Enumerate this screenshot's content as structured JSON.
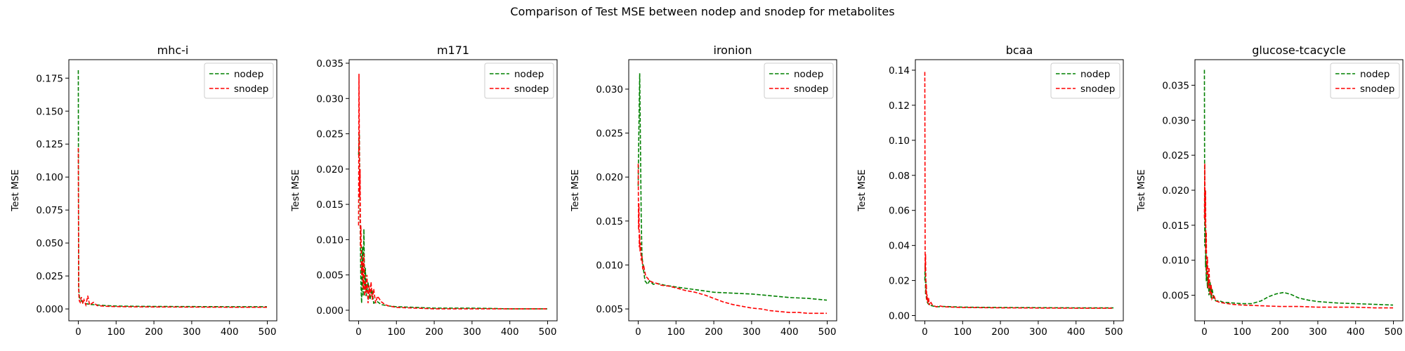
{
  "figure": {
    "suptitle": "Comparison of Test MSE between nodep and snodep for metabolites"
  },
  "colors": {
    "nodep": "#008000",
    "snodep": "#ff0000"
  },
  "chart_data": [
    {
      "type": "line",
      "title": "mhc-i",
      "xlabel": "",
      "ylabel": "Test MSE",
      "xlim": [
        -25,
        525
      ],
      "ylim": [
        -0.009,
        0.189
      ],
      "xticks": [
        0,
        100,
        200,
        300,
        400,
        500
      ],
      "yticks": [
        0.0,
        0.025,
        0.05,
        0.075,
        0.1,
        0.125,
        0.15,
        0.175
      ],
      "ytick_labels": [
        "0.000",
        "0.025",
        "0.050",
        "0.075",
        "0.100",
        "0.125",
        "0.150",
        "0.175"
      ],
      "grid": false,
      "legend": "top-right",
      "series": [
        {
          "name": "nodep",
          "x": [
            0,
            1,
            2,
            3,
            5,
            8,
            12,
            20,
            30,
            50,
            75,
            100,
            150,
            200,
            300,
            400,
            499
          ],
          "y": [
            0.181,
            0.018,
            0.012,
            0.009,
            0.007,
            0.006,
            0.005,
            0.004,
            0.0035,
            0.003,
            0.0025,
            0.0022,
            0.002,
            0.0019,
            0.0018,
            0.0017,
            0.0017
          ]
        },
        {
          "name": "snodep",
          "x": [
            0,
            1,
            2,
            3,
            5,
            8,
            12,
            15,
            20,
            25,
            30,
            40,
            50,
            75,
            100,
            150,
            200,
            300,
            400,
            499
          ],
          "y": [
            0.122,
            0.015,
            0.008,
            0.006,
            0.005,
            0.009,
            0.004,
            0.007,
            0.003,
            0.01,
            0.003,
            0.005,
            0.0025,
            0.002,
            0.0018,
            0.0016,
            0.0015,
            0.0014,
            0.0013,
            0.0013
          ]
        }
      ]
    },
    {
      "type": "line",
      "title": "m171",
      "xlabel": "",
      "ylabel": "Test MSE",
      "xlim": [
        -25,
        525
      ],
      "ylim": [
        -0.0015,
        0.0355
      ],
      "xticks": [
        0,
        100,
        200,
        300,
        400,
        500
      ],
      "yticks": [
        0.0,
        0.005,
        0.01,
        0.015,
        0.02,
        0.025,
        0.03,
        0.035
      ],
      "ytick_labels": [
        "0.000",
        "0.005",
        "0.010",
        "0.015",
        "0.020",
        "0.025",
        "0.030",
        "0.035"
      ],
      "grid": false,
      "legend": "top-right",
      "series": [
        {
          "name": "nodep",
          "x": [
            0,
            2,
            4,
            6,
            8,
            10,
            12,
            14,
            16,
            18,
            20,
            25,
            30,
            35,
            40,
            50,
            60,
            80,
            100,
            150,
            200,
            300,
            400,
            499
          ],
          "y": [
            0.022,
            0.025,
            0.013,
            0.004,
            0.001,
            0.009,
            0.002,
            0.0115,
            0.003,
            0.006,
            0.002,
            0.004,
            0.0015,
            0.003,
            0.001,
            0.0012,
            0.0008,
            0.0006,
            0.0005,
            0.0004,
            0.0003,
            0.0003,
            0.0002,
            0.0002
          ]
        },
        {
          "name": "snodep",
          "x": [
            0,
            1,
            2,
            3,
            4,
            5,
            6,
            8,
            10,
            12,
            14,
            16,
            18,
            20,
            22,
            25,
            28,
            30,
            33,
            36,
            40,
            45,
            50,
            60,
            70,
            80,
            100,
            150,
            200,
            300,
            400,
            499
          ],
          "y": [
            0.012,
            0.0335,
            0.024,
            0.016,
            0.02,
            0.009,
            0.012,
            0.005,
            0.007,
            0.003,
            0.008,
            0.002,
            0.004,
            0.0025,
            0.005,
            0.001,
            0.0035,
            0.002,
            0.004,
            0.0015,
            0.003,
            0.001,
            0.002,
            0.0012,
            0.0008,
            0.0006,
            0.0004,
            0.0003,
            0.0002,
            0.0002,
            0.0002,
            0.0002
          ]
        }
      ]
    },
    {
      "type": "line",
      "title": "ironion",
      "xlabel": "",
      "ylabel": "Test MSE",
      "xlim": [
        -25,
        525
      ],
      "ylim": [
        0.00365,
        0.03335
      ],
      "xticks": [
        0,
        100,
        200,
        300,
        400,
        500
      ],
      "yticks": [
        0.005,
        0.01,
        0.015,
        0.02,
        0.025,
        0.03
      ],
      "ytick_labels": [
        "0.005",
        "0.010",
        "0.015",
        "0.020",
        "0.025",
        "0.030"
      ],
      "grid": false,
      "legend": "top-right",
      "series": [
        {
          "name": "nodep",
          "x": [
            0,
            2,
            4,
            6,
            8,
            10,
            14,
            18,
            25,
            30,
            40,
            50,
            70,
            100,
            150,
            200,
            250,
            300,
            350,
            400,
            450,
            499
          ],
          "y": [
            0.019,
            0.026,
            0.0318,
            0.0235,
            0.0155,
            0.011,
            0.0095,
            0.0082,
            0.0078,
            0.0082,
            0.0078,
            0.0079,
            0.0077,
            0.0075,
            0.0072,
            0.0069,
            0.0068,
            0.0067,
            0.0065,
            0.0063,
            0.0062,
            0.006
          ]
        },
        {
          "name": "snodep",
          "x": [
            0,
            1,
            2,
            3,
            4,
            5,
            6,
            8,
            10,
            12,
            15,
            20,
            25,
            30,
            40,
            50,
            60,
            80,
            100,
            125,
            150,
            175,
            200,
            225,
            250,
            275,
            300,
            325,
            350,
            375,
            400,
            425,
            450,
            475,
            499
          ],
          "y": [
            0.0215,
            0.014,
            0.017,
            0.012,
            0.0135,
            0.0115,
            0.0125,
            0.0105,
            0.011,
            0.0095,
            0.0098,
            0.0087,
            0.0085,
            0.0082,
            0.008,
            0.0079,
            0.0077,
            0.0076,
            0.0074,
            0.0071,
            0.0069,
            0.0066,
            0.0062,
            0.0058,
            0.0055,
            0.0053,
            0.0051,
            0.005,
            0.0048,
            0.0047,
            0.0046,
            0.0046,
            0.0045,
            0.0045,
            0.0045
          ]
        }
      ]
    },
    {
      "type": "line",
      "title": "bcaa",
      "xlabel": "",
      "ylabel": "Test MSE",
      "xlim": [
        -25,
        525
      ],
      "ylim": [
        -0.003,
        0.146
      ],
      "xticks": [
        0,
        100,
        200,
        300,
        400,
        500
      ],
      "yticks": [
        0.0,
        0.02,
        0.04,
        0.06,
        0.08,
        0.1,
        0.12,
        0.14
      ],
      "ytick_labels": [
        "0.00",
        "0.02",
        "0.04",
        "0.06",
        "0.08",
        "0.10",
        "0.12",
        "0.14"
      ],
      "grid": false,
      "legend": "top-right",
      "series": [
        {
          "name": "nodep",
          "x": [
            0,
            1,
            2,
            3,
            4,
            6,
            8,
            12,
            20,
            30,
            50,
            75,
            100,
            150,
            200,
            300,
            400,
            499
          ],
          "y": [
            0.02,
            0.03,
            0.012,
            0.02,
            0.01,
            0.008,
            0.007,
            0.006,
            0.0055,
            0.005,
            0.0052,
            0.005,
            0.0048,
            0.0047,
            0.0046,
            0.0045,
            0.0044,
            0.0044
          ]
        },
        {
          "name": "snodep",
          "x": [
            0,
            1,
            2,
            3,
            4,
            5,
            6,
            8,
            10,
            12,
            15,
            20,
            30,
            40,
            50,
            75,
            100,
            150,
            200,
            300,
            400,
            499
          ],
          "y": [
            0.139,
            0.025,
            0.035,
            0.012,
            0.018,
            0.009,
            0.012,
            0.007,
            0.01,
            0.006,
            0.008,
            0.006,
            0.005,
            0.0055,
            0.005,
            0.0048,
            0.0046,
            0.0045,
            0.0044,
            0.0043,
            0.0042,
            0.0042
          ]
        }
      ]
    },
    {
      "type": "line",
      "title": "glucose-tcacycle",
      "xlabel": "",
      "ylabel": "Test MSE",
      "xlim": [
        -25,
        525
      ],
      "ylim": [
        0.00135,
        0.03865
      ],
      "xticks": [
        0,
        100,
        200,
        300,
        400,
        500
      ],
      "yticks": [
        0.005,
        0.01,
        0.015,
        0.02,
        0.025,
        0.03,
        0.035
      ],
      "ytick_labels": [
        "0.005",
        "0.010",
        "0.015",
        "0.020",
        "0.025",
        "0.030",
        "0.035"
      ],
      "grid": false,
      "legend": "top-right",
      "series": [
        {
          "name": "nodep",
          "x": [
            0,
            1,
            2,
            3,
            4,
            5,
            6,
            8,
            10,
            12,
            15,
            18,
            20,
            25,
            30,
            40,
            50,
            75,
            100,
            125,
            150,
            170,
            190,
            210,
            230,
            250,
            275,
            300,
            350,
            400,
            450,
            499
          ],
          "y": [
            0.0372,
            0.012,
            0.02,
            0.009,
            0.011,
            0.007,
            0.0095,
            0.006,
            0.008,
            0.005,
            0.007,
            0.0045,
            0.006,
            0.0045,
            0.0042,
            0.0042,
            0.004,
            0.0039,
            0.0038,
            0.0038,
            0.0042,
            0.0048,
            0.0052,
            0.0054,
            0.0051,
            0.0046,
            0.0043,
            0.0041,
            0.0039,
            0.0038,
            0.0037,
            0.0036
          ]
        },
        {
          "name": "snodep",
          "x": [
            0,
            1,
            2,
            3,
            4,
            5,
            6,
            8,
            10,
            12,
            15,
            18,
            20,
            25,
            30,
            40,
            50,
            75,
            100,
            150,
            200,
            250,
            300,
            350,
            400,
            450,
            499
          ],
          "y": [
            0.016,
            0.0238,
            0.015,
            0.02,
            0.011,
            0.014,
            0.008,
            0.0105,
            0.006,
            0.009,
            0.005,
            0.0065,
            0.0045,
            0.005,
            0.0042,
            0.004,
            0.0039,
            0.0037,
            0.0036,
            0.0035,
            0.0034,
            0.0034,
            0.0033,
            0.0033,
            0.0033,
            0.0032,
            0.0032
          ]
        }
      ]
    }
  ]
}
